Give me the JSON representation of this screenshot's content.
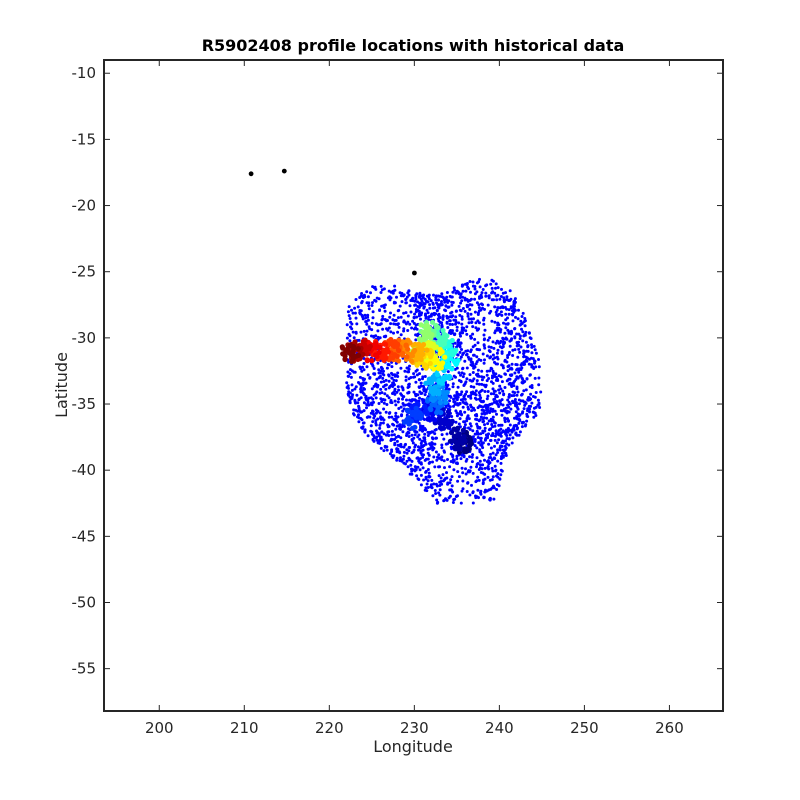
{
  "chart_data": {
    "type": "scatter",
    "title": "R5902408 profile locations with historical data",
    "xlabel": "Longitude",
    "ylabel": "Latitude",
    "xlim": [
      193.5,
      266.3
    ],
    "ylim": [
      -58.2,
      -9.0
    ],
    "x_ticks": [
      200,
      210,
      220,
      230,
      240,
      250,
      260
    ],
    "y_ticks": [
      -10,
      -15,
      -20,
      -25,
      -30,
      -35,
      -40,
      -45,
      -50,
      -55
    ],
    "grid": false,
    "legend": "none",
    "colors": {
      "historical": "#0000ff",
      "float_marker": "#000000",
      "colormap": "jet"
    },
    "historical_cloud": {
      "center": [
        233.0,
        -33.5
      ],
      "lon_range": [
        222.0,
        245.0
      ],
      "lat_range": [
        -42.5,
        -24.8
      ]
    },
    "float_track": [
      {
        "lon": 235.7,
        "lat": -37.9
      },
      {
        "lon": 235.3,
        "lat": -37.6
      },
      {
        "lon": 233.5,
        "lat": -36.2
      },
      {
        "lon": 232.0,
        "lat": -35.4
      },
      {
        "lon": 230.5,
        "lat": -35.8
      },
      {
        "lon": 229.8,
        "lat": -36.0
      },
      {
        "lon": 232.6,
        "lat": -34.9
      },
      {
        "lon": 233.0,
        "lat": -34.3
      },
      {
        "lon": 232.2,
        "lat": -33.6
      },
      {
        "lon": 233.2,
        "lat": -32.6
      },
      {
        "lon": 234.2,
        "lat": -31.6
      },
      {
        "lon": 233.8,
        "lat": -30.8
      },
      {
        "lon": 232.8,
        "lat": -30.0
      },
      {
        "lon": 231.8,
        "lat": -29.6
      },
      {
        "lon": 231.0,
        "lat": -29.8
      },
      {
        "lon": 230.4,
        "lat": -31.2
      },
      {
        "lon": 231.8,
        "lat": -31.2
      },
      {
        "lon": 232.5,
        "lat": -31.6
      },
      {
        "lon": 231.2,
        "lat": -31.6
      },
      {
        "lon": 230.5,
        "lat": -31.2
      },
      {
        "lon": 229.2,
        "lat": -31.0
      },
      {
        "lon": 228.2,
        "lat": -31.0
      },
      {
        "lon": 227.2,
        "lat": -30.9
      },
      {
        "lon": 226.0,
        "lat": -31.0
      },
      {
        "lon": 225.0,
        "lat": -31.1
      },
      {
        "lon": 224.0,
        "lat": -31.0
      },
      {
        "lon": 223.0,
        "lat": -31.0
      },
      {
        "lon": 222.4,
        "lat": -31.1
      }
    ],
    "black_markers": [
      {
        "lon": 210.8,
        "lat": -17.6
      },
      {
        "lon": 214.7,
        "lat": -17.4
      },
      {
        "lon": 230.0,
        "lat": -25.1
      }
    ]
  }
}
